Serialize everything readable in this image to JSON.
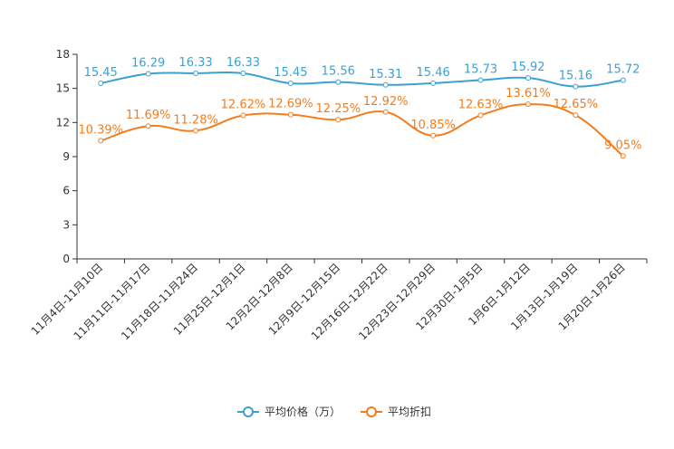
{
  "chart_data": {
    "type": "line",
    "categories": [
      "11月4日-11月10日",
      "11月11日-11月17日",
      "11月18日-11月24日",
      "11月25日-12月1日",
      "12月2日-12月8日",
      "12月9日-12月15日",
      "12月16日-12月22日",
      "12月23日-12月29日",
      "12月30日-1月5日",
      "1月6日-1月12日",
      "1月13日-1月19日",
      "1月20日-1月26日"
    ],
    "y_ticks": [
      "0",
      "3",
      "6",
      "9",
      "12",
      "15",
      "18"
    ],
    "ylim": [
      0,
      18
    ],
    "grid": false,
    "legend_position": "bottom-center",
    "series": [
      {
        "name": "平均价格（万）",
        "color": "#3ba1d3",
        "values": [
          15.45,
          16.29,
          16.33,
          16.33,
          15.45,
          15.56,
          15.31,
          15.46,
          15.73,
          15.92,
          15.16,
          15.72
        ],
        "labels": [
          "15.45",
          "16.29",
          "16.33",
          "16.33",
          "15.45",
          "15.56",
          "15.31",
          "15.46",
          "15.73",
          "15.92",
          "15.16",
          "15.72"
        ]
      },
      {
        "name": "平均折扣",
        "color": "#f47c1d",
        "values": [
          10.39,
          11.69,
          11.28,
          12.62,
          12.69,
          12.25,
          12.92,
          10.85,
          12.63,
          13.61,
          12.65,
          9.05
        ],
        "labels": [
          "10.39%",
          "11.69%",
          "11.28%",
          "12.62%",
          "12.69%",
          "12.25%",
          "12.92%",
          "10.85%",
          "12.63%",
          "13.61%",
          "12.65%",
          "9.05%"
        ]
      }
    ]
  }
}
